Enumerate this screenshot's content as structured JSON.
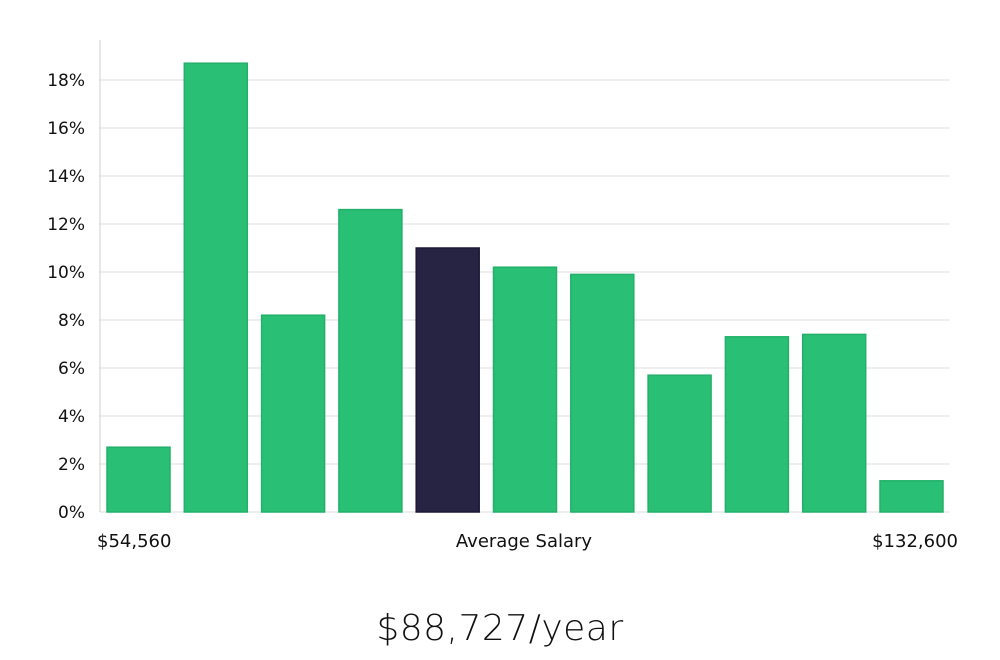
{
  "colors": {
    "bar": "#29bf75",
    "highlight": "#272343",
    "grid": "#dedede",
    "axis": "#cfcfcf"
  },
  "chart_data": {
    "type": "bar",
    "values": [
      2.7,
      18.7,
      8.2,
      12.6,
      11.0,
      10.2,
      9.9,
      5.7,
      7.3,
      7.4,
      1.3
    ],
    "highlight_index": 4,
    "ylim": [
      0,
      19
    ],
    "yticks": [
      "0%",
      "2%",
      "4%",
      "6%",
      "8%",
      "10%",
      "12%",
      "14%",
      "16%",
      "18%"
    ],
    "ytick_values": [
      0,
      2,
      4,
      6,
      8,
      10,
      12,
      14,
      16,
      18
    ],
    "grid": true,
    "x_labels": {
      "left": "$54,560",
      "center": "Average Salary",
      "right": "$132,600"
    }
  },
  "salary_label": "$88,727/year"
}
